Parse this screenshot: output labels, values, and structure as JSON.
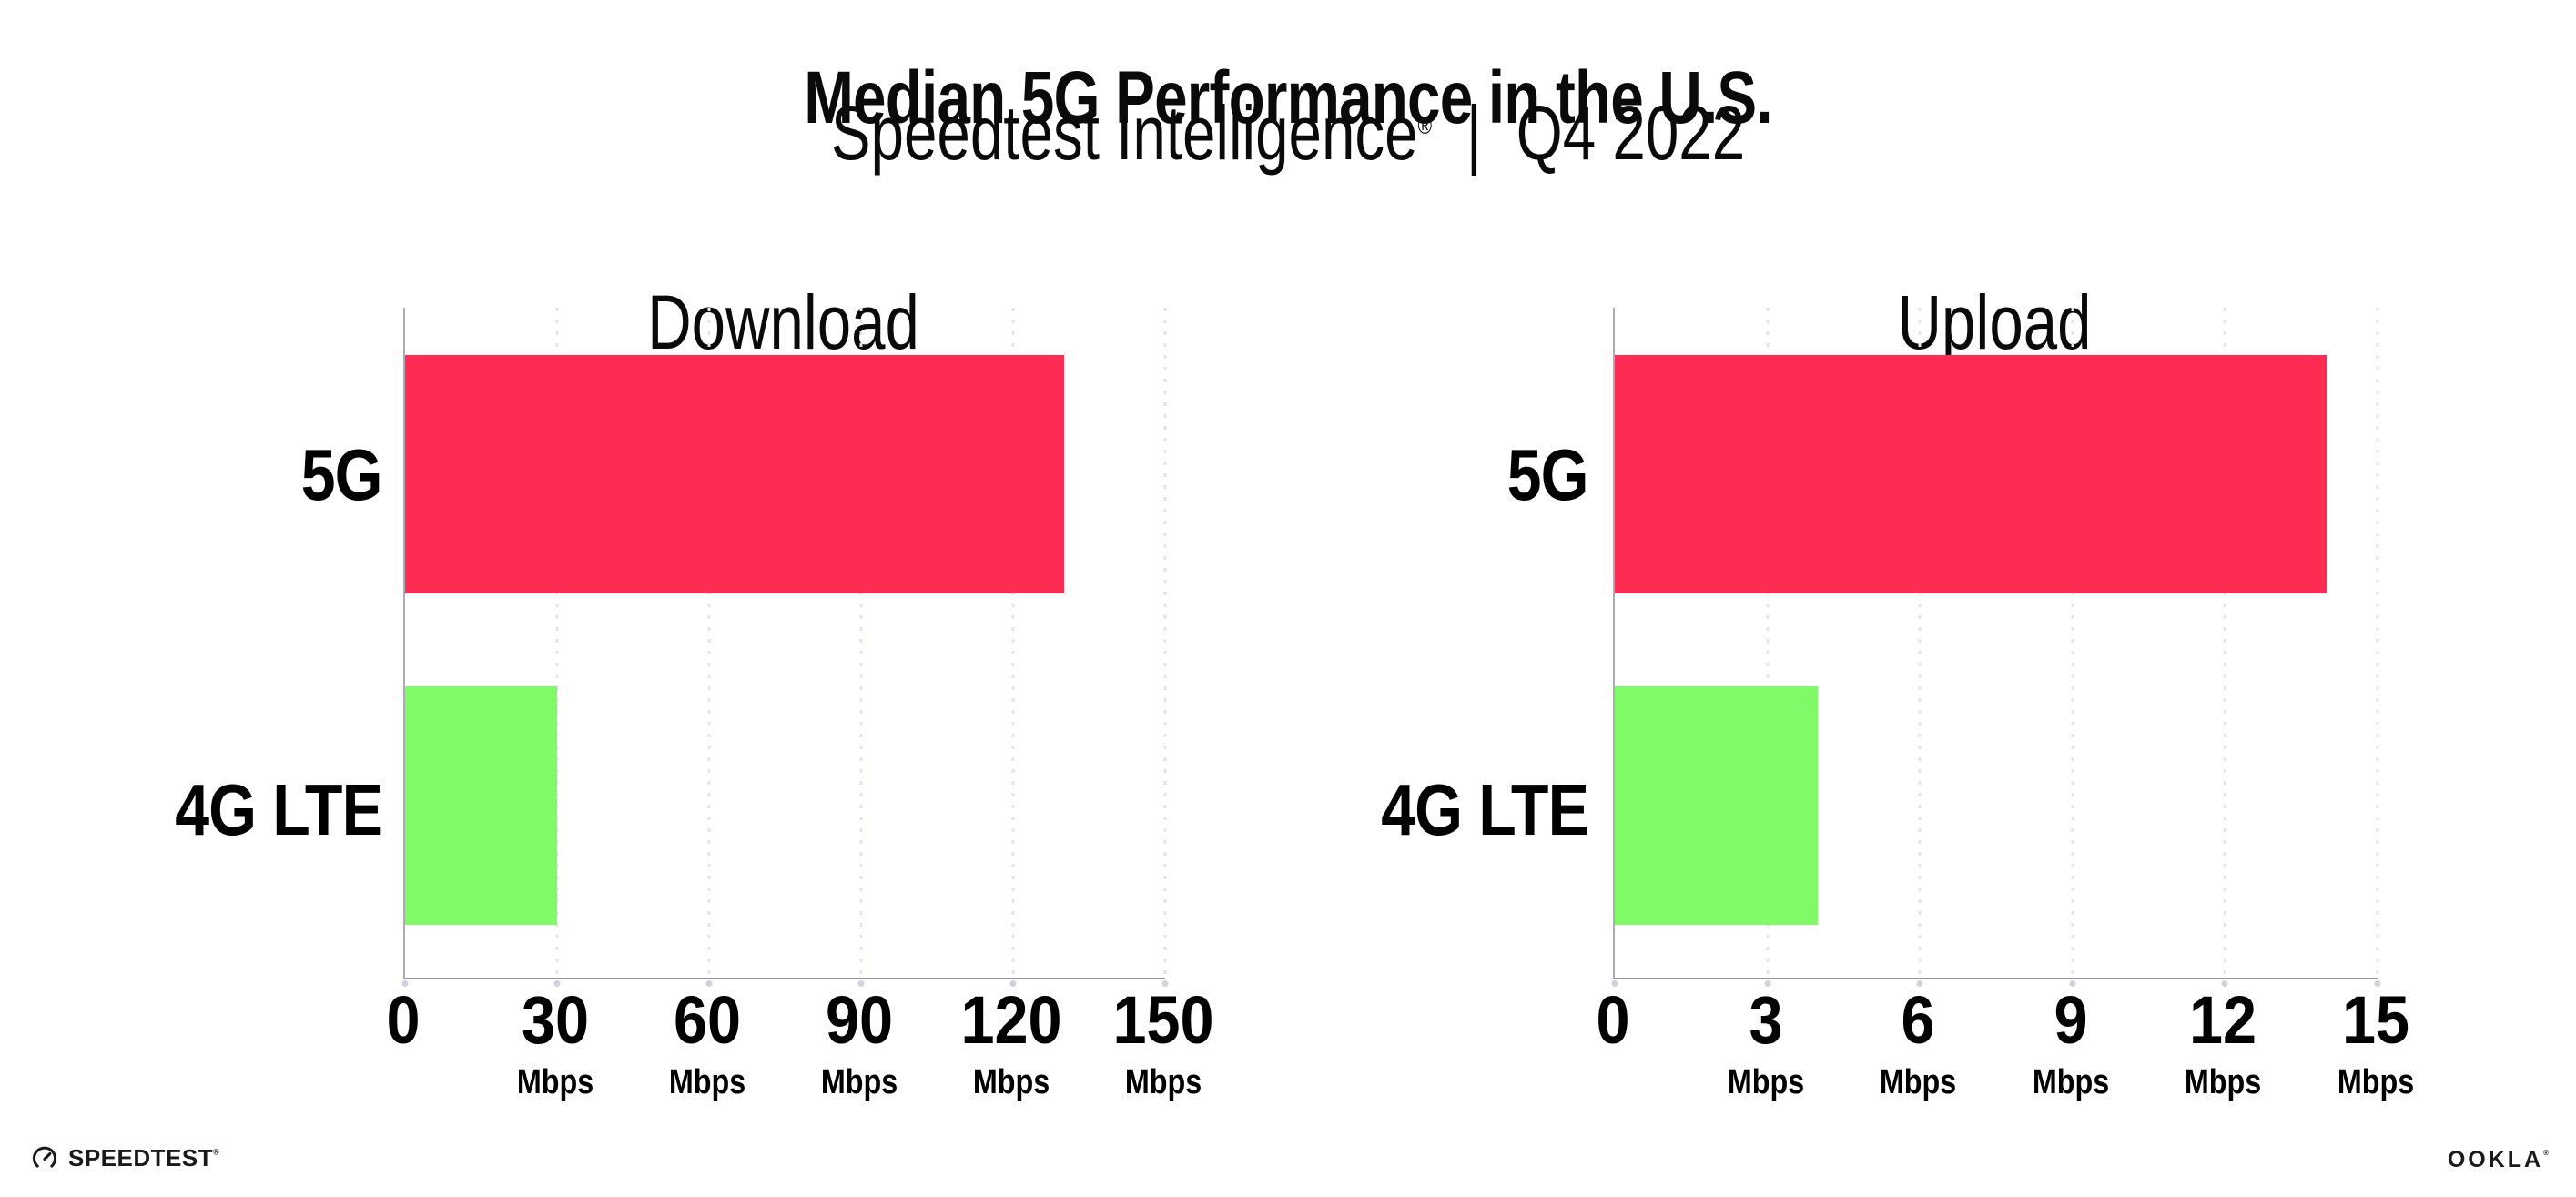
{
  "header": {
    "title": "Median 5G Performance in the U.S.",
    "subtitle": {
      "brand": "Speedtest Intelligence",
      "trademark": "®",
      "separator": "|",
      "period": "Q4 2022"
    }
  },
  "chart_data": [
    {
      "type": "bar",
      "orientation": "horizontal",
      "title": "Download",
      "categories": [
        "5G",
        "4G LTE"
      ],
      "values": [
        130,
        30
      ],
      "unit": "Mbps",
      "xlim": [
        0,
        150
      ],
      "xticks": [
        0,
        30,
        60,
        90,
        120,
        150
      ],
      "bar_colors": [
        "#FE2C55",
        "#80FA66"
      ],
      "grid": "dotted-vertical-lines",
      "legend": "none"
    },
    {
      "type": "bar",
      "orientation": "horizontal",
      "title": "Upload",
      "categories": [
        "5G",
        "4G LTE"
      ],
      "values": [
        14,
        4
      ],
      "unit": "Mbps",
      "xlim": [
        0,
        15
      ],
      "xticks": [
        0,
        3,
        6,
        9,
        12,
        15
      ],
      "bar_colors": [
        "#FE2C55",
        "#80FA66"
      ],
      "grid": "dotted-vertical-lines",
      "legend": "none"
    }
  ],
  "footer": {
    "speedtest_logo_text": "SPEEDTEST",
    "speedtest_trademark": "®",
    "ookla_logo_text": "OOKLA",
    "ookla_trademark": "®"
  },
  "colors": {
    "bar_5g": "#FE2C55",
    "bar_4g_lte": "#80FA66",
    "axis": "#95959d",
    "gridline": "#e4e4ed",
    "text": "#111111"
  }
}
